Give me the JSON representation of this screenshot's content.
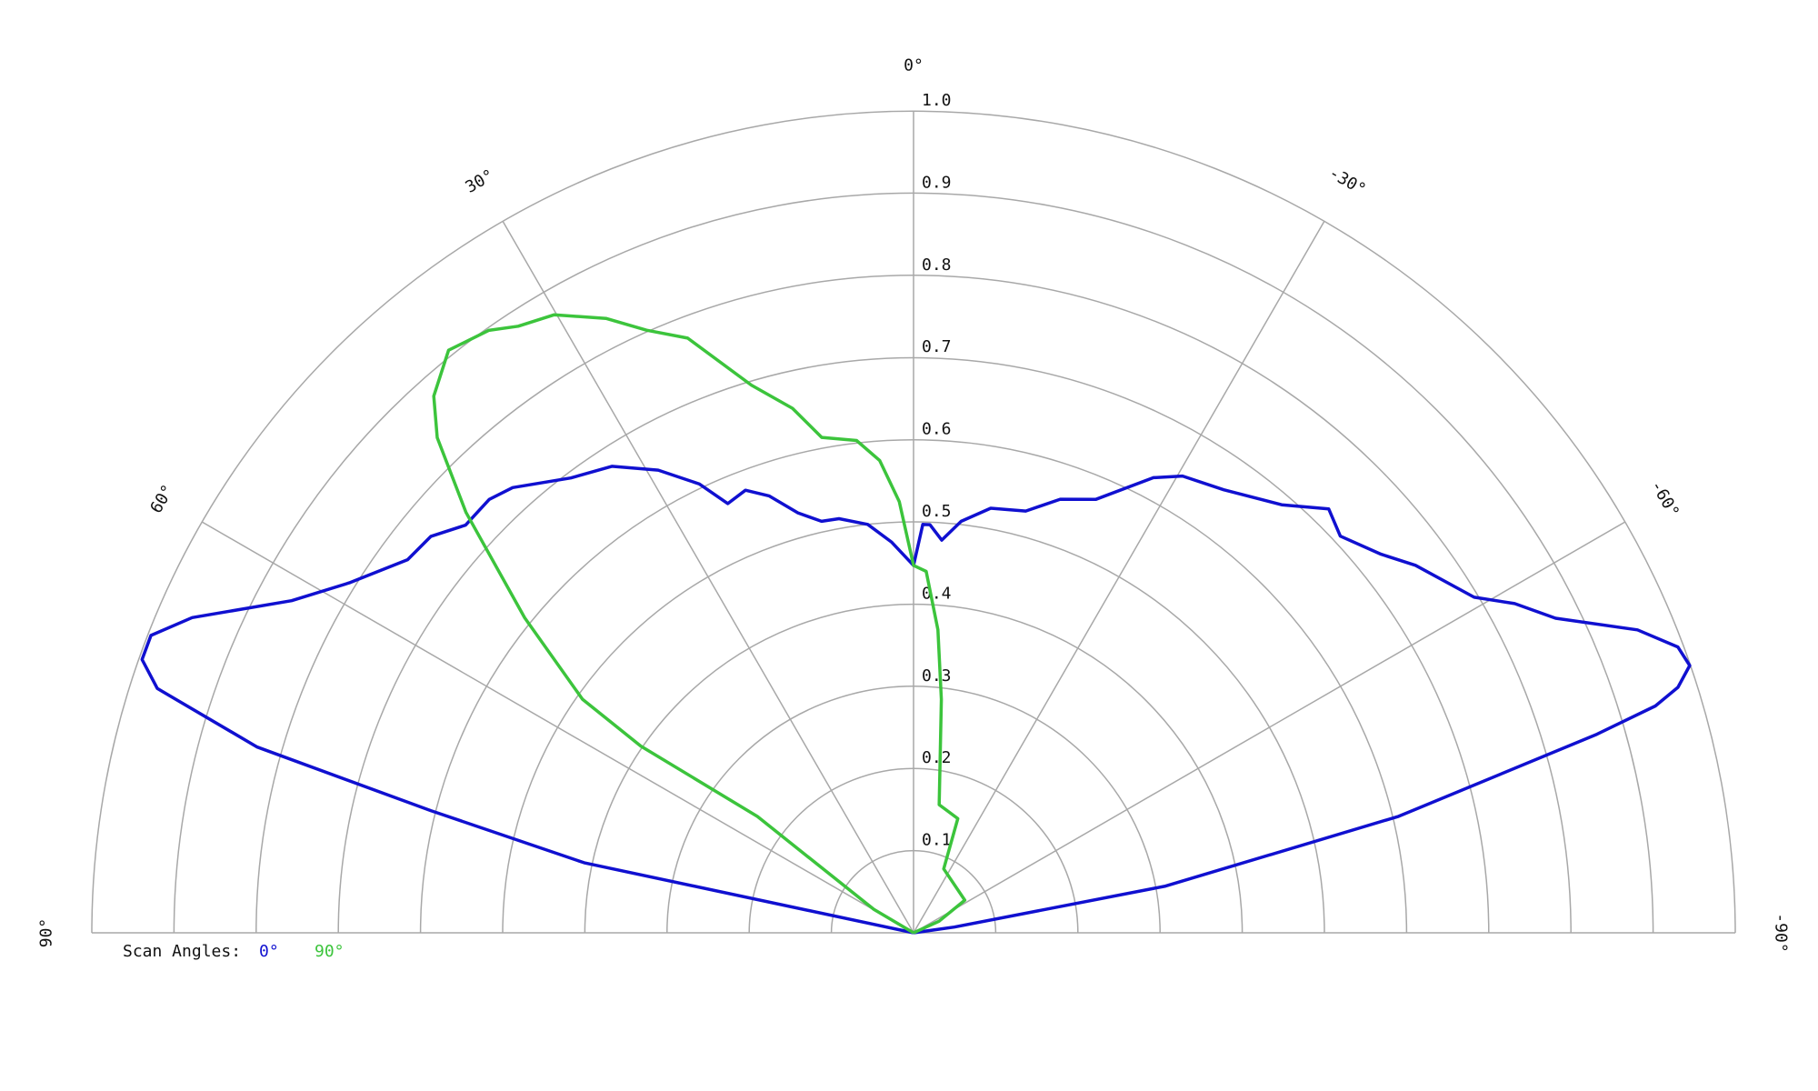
{
  "chart_data": {
    "type": "polar",
    "legend_title": "Scan Angles:",
    "rlim": [
      0,
      1
    ],
    "rticks": [
      0.1,
      0.2,
      0.3,
      0.4,
      0.5,
      0.6,
      0.7,
      0.8,
      0.9,
      {
        "value": 1,
        "label": "1.0"
      }
    ],
    "thetalim": [
      90,
      -90
    ],
    "thetaticks": [
      {
        "value": 90,
        "label": "90°"
      },
      {
        "value": 60,
        "label": "60°"
      },
      {
        "value": 30,
        "label": "30°"
      },
      {
        "value": 0,
        "label": "0°"
      },
      {
        "value": -30,
        "label": "-30°"
      },
      {
        "value": -60,
        "label": "-60°"
      },
      {
        "value": -90,
        "label": "-90°"
      }
    ],
    "grid": true,
    "series": [
      {
        "name": "0°",
        "color": "#1010d0",
        "theta": [
          90,
          78,
          75.8,
          74.2,
          72.1,
          70.5,
          68.7,
          66.4,
          61.9,
          58.2,
          53.6,
          50.6,
          47.7,
          44.4,
          42,
          37,
          32.9,
          28.9,
          25.5,
          23.4,
          20.8,
          18.3,
          15.4,
          12.6,
          10.2,
          6.4,
          3.2,
          0,
          -1.3,
          -2.3,
          -4.1,
          -6.6,
          -10.3,
          -14.9,
          -18.7,
          -22.8,
          -27.8,
          -30.5,
          -35,
          -40.7,
          -44.4,
          -47.1,
          -51,
          -53.8,
          -59.1,
          -61.3,
          -63.9,
          -67.3,
          -69.5,
          -71,
          -72.2,
          -73,
          -73.8,
          -76.5,
          -79.5,
          -82,
          -90
        ],
        "values": [
          0,
          0.41,
          0.606,
          0.83,
          0.967,
          0.996,
          0.996,
          0.958,
          0.858,
          0.808,
          0.765,
          0.76,
          0.737,
          0.738,
          0.729,
          0.693,
          0.676,
          0.643,
          0.605,
          0.569,
          0.576,
          0.56,
          0.53,
          0.513,
          0.512,
          0.5,
          0.476,
          0.447,
          0.497,
          0.497,
          0.479,
          0.504,
          0.525,
          0.531,
          0.557,
          0.572,
          0.626,
          0.645,
          0.658,
          0.687,
          0.722,
          0.709,
          0.732,
          0.757,
          0.795,
          0.834,
          0.87,
          0.955,
          0.993,
          0.999,
          0.977,
          0.944,
          0.866,
          0.607,
          0.312,
          0.05,
          0
        ]
      },
      {
        "name": "90°",
        "color": "#3cc43c",
        "theta": [
          90,
          59.5,
          53.3,
          55.6,
          54.8,
          51,
          46.8,
          43.9,
          41.8,
          38.6,
          35.2,
          33.1,
          30.2,
          26.6,
          23.9,
          20.8,
          16.5,
          13,
          10.5,
          6.6,
          4.1,
          1.9,
          0,
          -2,
          -4.6,
          -6.8,
          -11.3,
          -21.2,
          -25.3,
          -57.5,
          -65.6,
          -90
        ],
        "values": [
          0,
          0.056,
          0.237,
          0.402,
          0.493,
          0.609,
          0.747,
          0.836,
          0.876,
          0.907,
          0.897,
          0.881,
          0.87,
          0.836,
          0.802,
          0.774,
          0.695,
          0.655,
          0.613,
          0.603,
          0.576,
          0.525,
          0.447,
          0.44,
          0.37,
          0.286,
          0.159,
          0.149,
          0.086,
          0.074,
          0.034,
          0
        ]
      }
    ]
  }
}
